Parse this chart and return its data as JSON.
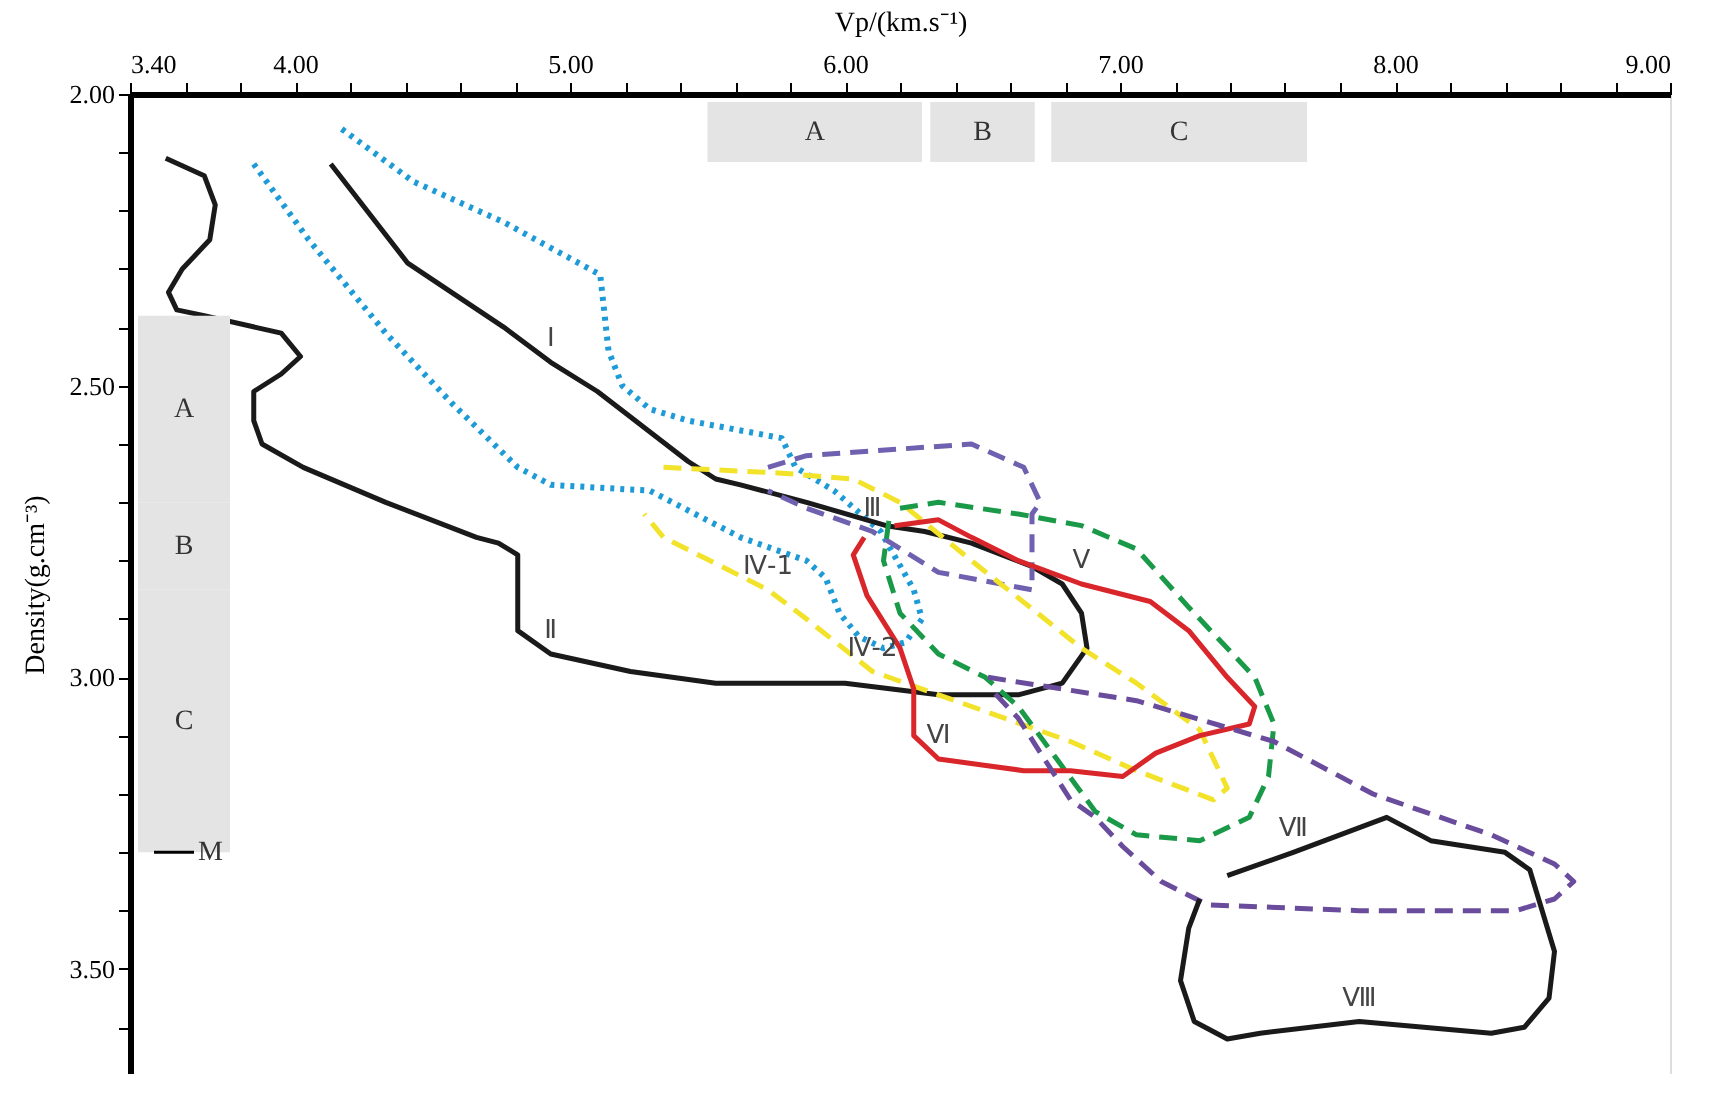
{
  "chart_data": {
    "type": "line",
    "xlabel": "Vp/(km.s⁻¹)",
    "ylabel": "Density(g.cm⁻³)",
    "xlim": [
      3.4,
      9.0
    ],
    "xticks": [
      {
        "value": 3.4,
        "label": "3.40"
      },
      {
        "value": 3.6,
        "label": null
      },
      {
        "value": 3.8,
        "label": null
      },
      {
        "value": 4.0,
        "label": "4.00"
      },
      {
        "value": 4.2,
        "label": null
      },
      {
        "value": 4.4,
        "label": null
      },
      {
        "value": 4.6,
        "label": null
      },
      {
        "value": 4.8,
        "label": null
      },
      {
        "value": 5.0,
        "label": "5.00"
      },
      {
        "value": 5.2,
        "label": null
      },
      {
        "value": 5.4,
        "label": null
      },
      {
        "value": 5.6,
        "label": null
      },
      {
        "value": 5.8,
        "label": null
      },
      {
        "value": 6.0,
        "label": "6.00"
      },
      {
        "value": 6.2,
        "label": null
      },
      {
        "value": 6.4,
        "label": null
      },
      {
        "value": 6.6,
        "label": null
      },
      {
        "value": 6.8,
        "label": null
      },
      {
        "value": 7.0,
        "label": "7.00"
      },
      {
        "value": 7.2,
        "label": null
      },
      {
        "value": 7.4,
        "label": null
      },
      {
        "value": 7.6,
        "label": null
      },
      {
        "value": 7.8,
        "label": null
      },
      {
        "value": 8.0,
        "label": "8.00"
      },
      {
        "value": 8.2,
        "label": null
      },
      {
        "value": 8.4,
        "label": null
      },
      {
        "value": 8.6,
        "label": null
      },
      {
        "value": 8.8,
        "label": null
      },
      {
        "value": 9.0,
        "label": "9.00"
      }
    ],
    "ylim": [
      3.68,
      2.0
    ],
    "yticks": [
      {
        "value": 2.0,
        "label": "2.00"
      },
      {
        "value": 2.1,
        "label": null
      },
      {
        "value": 2.2,
        "label": null
      },
      {
        "value": 2.3,
        "label": null
      },
      {
        "value": 2.4,
        "label": null
      },
      {
        "value": 2.5,
        "label": "2.50"
      },
      {
        "value": 2.6,
        "label": null
      },
      {
        "value": 2.7,
        "label": null
      },
      {
        "value": 2.8,
        "label": null
      },
      {
        "value": 2.9,
        "label": null
      },
      {
        "value": 3.0,
        "label": "3.00"
      },
      {
        "value": 3.1,
        "label": null
      },
      {
        "value": 3.2,
        "label": null
      },
      {
        "value": 3.3,
        "label": null
      },
      {
        "value": 3.4,
        "label": null
      },
      {
        "value": 3.5,
        "label": "3.50"
      },
      {
        "value": 3.6,
        "label": null
      }
    ],
    "grid": false,
    "marker": "none",
    "bands": [
      {
        "axis": "x",
        "from": 5.5,
        "to": 6.28,
        "label": "A",
        "color": "#e4e4e4"
      },
      {
        "axis": "x",
        "from": 6.31,
        "to": 6.69,
        "label": "B",
        "color": "#e4e4e4"
      },
      {
        "axis": "x",
        "from": 6.75,
        "to": 7.68,
        "label": "C",
        "color": "#e4e4e4"
      },
      {
        "axis": "y",
        "from": 2.38,
        "to": 2.7,
        "label": "A",
        "color": "#e4e4e4"
      },
      {
        "axis": "y",
        "from": 2.7,
        "to": 2.85,
        "label": "B",
        "color": "#e4e4e4"
      },
      {
        "axis": "y",
        "from": 2.85,
        "to": 3.3,
        "label": "C",
        "color": "#e4e4e4"
      }
    ],
    "ref_lines": [
      {
        "axis": "y",
        "value": 3.3,
        "label": "M"
      }
    ],
    "series": [
      {
        "color": "#1e9bd7",
        "line_style": "dotted",
        "x": [
          4.17,
          4.43,
          4.76,
          5.11,
          5.14,
          5.19,
          5.29,
          5.43,
          5.77,
          5.8,
          5.82,
          5.96,
          6.13,
          6.25,
          6.28,
          6.22,
          6.14,
          6.05,
          5.98,
          5.93,
          5.86,
          5.62,
          5.29,
          4.93,
          4.81,
          4.57,
          4.33,
          4.05,
          3.85
        ],
        "values": [
          2.06,
          2.15,
          2.22,
          2.31,
          2.44,
          2.5,
          2.54,
          2.56,
          2.59,
          2.62,
          2.64,
          2.68,
          2.75,
          2.85,
          2.9,
          2.94,
          2.95,
          2.93,
          2.89,
          2.83,
          2.8,
          2.76,
          2.68,
          2.67,
          2.64,
          2.53,
          2.41,
          2.25,
          2.12
        ]
      },
      {
        "color": "#1a1a1a",
        "line_style": "solid",
        "x": [
          3.53,
          3.67,
          3.71,
          3.69,
          3.59,
          3.54,
          3.57,
          3.67,
          3.95,
          4.02,
          3.95,
          3.85,
          3.85,
          3.88,
          4.03,
          4.33,
          4.66,
          4.74,
          4.81,
          4.81,
          4.93,
          5.22,
          5.53,
          6.0,
          6.34,
          6.63,
          6.79,
          6.88,
          6.86,
          6.79,
          6.68,
          6.46,
          6.29,
          6.15,
          5.86,
          5.62,
          5.53,
          5.43,
          5.1,
          4.93,
          4.76,
          4.41,
          4.13
        ],
        "values": [
          2.11,
          2.14,
          2.19,
          2.25,
          2.3,
          2.34,
          2.37,
          2.38,
          2.41,
          2.45,
          2.48,
          2.51,
          2.56,
          2.6,
          2.64,
          2.7,
          2.76,
          2.77,
          2.79,
          2.92,
          2.96,
          2.99,
          3.01,
          3.01,
          3.03,
          3.03,
          3.01,
          2.95,
          2.89,
          2.84,
          2.81,
          2.77,
          2.75,
          2.74,
          2.7,
          2.67,
          2.66,
          2.63,
          2.51,
          2.46,
          2.4,
          2.29,
          2.12
        ]
      },
      {
        "color": "#7060b0",
        "line_style": "dashed",
        "x": [
          5.72,
          5.86,
          6.46,
          6.65,
          6.71,
          6.68,
          6.68,
          6.34,
          6.1,
          5.86,
          5.72
        ],
        "values": [
          2.64,
          2.62,
          2.6,
          2.64,
          2.7,
          2.72,
          2.85,
          2.82,
          2.75,
          2.71,
          2.68
        ]
      },
      {
        "color": "#f2e22a",
        "line_style": "dashed",
        "x": [
          5.34,
          5.77,
          6.03,
          6.2,
          6.46,
          6.86,
          7.06,
          7.29,
          7.39,
          7.34,
          7.06,
          6.82,
          6.58,
          6.34,
          6.1,
          5.86,
          5.72,
          5.34,
          5.27
        ],
        "values": [
          2.64,
          2.65,
          2.66,
          2.7,
          2.8,
          2.95,
          3.01,
          3.09,
          3.19,
          3.21,
          3.16,
          3.11,
          3.07,
          3.03,
          2.99,
          2.9,
          2.85,
          2.76,
          2.72
        ]
      },
      {
        "color": "#1a9a48",
        "line_style": "dashed",
        "x": [
          6.2,
          6.34,
          6.63,
          6.86,
          7.06,
          7.25,
          7.49,
          7.56,
          7.54,
          7.47,
          7.29,
          7.06,
          6.91,
          6.77,
          6.63,
          6.51,
          6.34,
          6.2,
          6.14,
          6.16
        ],
        "values": [
          2.71,
          2.7,
          2.72,
          2.74,
          2.78,
          2.88,
          3.0,
          3.08,
          3.17,
          3.24,
          3.28,
          3.27,
          3.23,
          3.14,
          3.05,
          3.0,
          2.96,
          2.89,
          2.8,
          2.73
        ]
      },
      {
        "color": "#d9262a",
        "line_style": "solid",
        "x": [
          6.18,
          6.34,
          6.46,
          6.63,
          6.86,
          7.11,
          7.25,
          7.39,
          7.49,
          7.47,
          7.29,
          7.13,
          7.01,
          6.82,
          6.65,
          6.34,
          6.25,
          6.25,
          6.2,
          6.08,
          6.03,
          6.07
        ],
        "values": [
          2.74,
          2.73,
          2.76,
          2.8,
          2.84,
          2.87,
          2.92,
          3.0,
          3.05,
          3.08,
          3.1,
          3.13,
          3.17,
          3.16,
          3.16,
          3.14,
          3.1,
          3.02,
          2.95,
          2.86,
          2.79,
          2.76
        ]
      },
      {
        "color": "#6a4c9c",
        "line_style": "dashed",
        "x": [
          6.52,
          7.06,
          7.56,
          7.92,
          8.35,
          8.58,
          8.65,
          8.58,
          8.44,
          7.87,
          7.32,
          7.15,
          7.01,
          6.91,
          6.82,
          6.63,
          6.53
        ],
        "values": [
          3.0,
          3.04,
          3.11,
          3.2,
          3.27,
          3.32,
          3.35,
          3.38,
          3.4,
          3.4,
          3.39,
          3.35,
          3.29,
          3.24,
          3.21,
          3.07,
          3.02
        ]
      },
      {
        "color": "#1a1a1a",
        "line_style": "solid",
        "x": [
          7.39,
          7.63,
          7.97,
          8.13,
          8.4,
          8.49,
          8.58,
          8.56,
          8.47,
          8.35,
          7.87,
          7.51,
          7.39,
          7.27,
          7.22,
          7.25,
          7.29
        ],
        "values": [
          3.34,
          3.3,
          3.24,
          3.28,
          3.3,
          3.33,
          3.47,
          3.55,
          3.6,
          3.61,
          3.59,
          3.61,
          3.62,
          3.59,
          3.52,
          3.43,
          3.38
        ]
      }
    ],
    "annotations": [
      {
        "text": "Ⅰ",
        "x": 4.93,
        "y": 2.46
      },
      {
        "text": "Ⅱ",
        "x": 4.93,
        "y": 2.96
      },
      {
        "text": "Ⅲ",
        "x": 6.1,
        "y": 2.75
      },
      {
        "text": "Ⅳ-1",
        "x": 5.72,
        "y": 2.85
      },
      {
        "text": "Ⅳ-2",
        "x": 6.1,
        "y": 2.99
      },
      {
        "text": "Ⅴ",
        "x": 6.86,
        "y": 2.84
      },
      {
        "text": "Ⅵ",
        "x": 6.34,
        "y": 3.14
      },
      {
        "text": "Ⅶ",
        "x": 7.63,
        "y": 3.3
      },
      {
        "text": "Ⅷ",
        "x": 7.87,
        "y": 3.59
      }
    ]
  }
}
